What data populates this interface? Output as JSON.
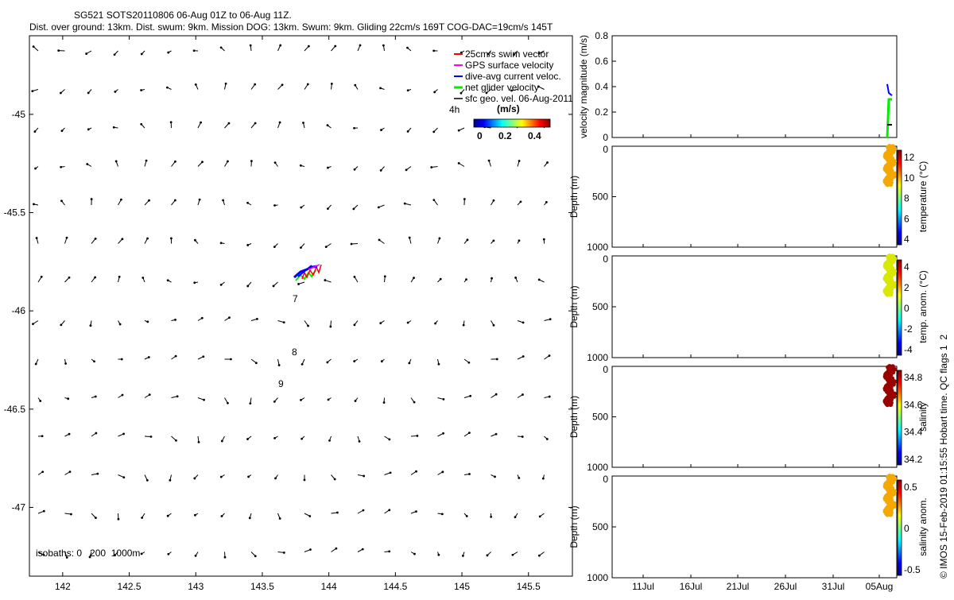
{
  "colors": {
    "swim": "#ff0000",
    "gps": "#ff00ff",
    "dac": "#0000ff",
    "net": "#00ee00",
    "geo": "#000000",
    "axis": "#000000"
  },
  "title": {
    "line1": "SG521 SOTS20110806 06-Aug 01Z to 06-Aug 11Z.",
    "line2": "Dist. over ground: 13km. Dist. swum: 9km. Mission DOG: 13km. Swum: 9km. Gliding 22cm/s 169T COG-DAC=19cm/s 145T"
  },
  "legend": {
    "items": [
      {
        "label": "25cm/s swim vector",
        "color": "#ff0000"
      },
      {
        "label": "GPS surface velocity",
        "color": "#ff00ff"
      },
      {
        "label": "dive-avg current veloc.",
        "color": "#0000ff"
      },
      {
        "label": "net glider velocity",
        "color": "#00ee00"
      },
      {
        "label": "sfc geo. vel. 06-Aug-2011",
        "color": "#000000"
      }
    ],
    "hour_label": "4h",
    "colorbar_unit": "(m/s)",
    "colorbar_ticks": [
      "0",
      "0.2",
      "0.4"
    ]
  },
  "map_annotations": {
    "dive_numbers": [
      "7",
      "8",
      "9"
    ],
    "isobaths": "isobaths: 0   200  1000m"
  },
  "side_text": "© IMOS 15-Feb-2019 01:15:55 Hobart time. QC flags 1  2",
  "chart_data": [
    {
      "type": "scatter",
      "name": "map",
      "x_range": [
        141.75,
        145.83
      ],
      "y_range": [
        -47.35,
        -44.6
      ],
      "x_ticks": [
        142,
        142.5,
        143,
        143.5,
        144,
        144.5,
        145,
        145.5
      ],
      "x_tick_labels": [
        "142",
        "142.5",
        "143",
        "143.5",
        "144",
        "144.5",
        "145",
        "145.5"
      ],
      "y_ticks": [
        -45,
        -45.5,
        -46,
        -46.5,
        -47
      ],
      "y_tick_labels": [
        "-45",
        "-45.5",
        "-46",
        "-46.5",
        "-47"
      ],
      "glider_track": {
        "lon": [
          143.72,
          143.78,
          143.84,
          143.9
        ],
        "lat": [
          -45.79,
          -45.77,
          -45.75,
          -45.73
        ]
      },
      "dive_positions": [
        {
          "label": "7",
          "lon": 143.72,
          "lat": -45.9
        },
        {
          "label": "8",
          "lon": 143.71,
          "lat": -46.17
        },
        {
          "label": "9",
          "lon": 143.6,
          "lat": -46.34
        }
      ]
    },
    {
      "type": "line",
      "name": "velocity",
      "ylabel": "velocity magnitude (m/s)",
      "ylim": [
        0,
        0.8
      ],
      "y_ticks": [
        0,
        0.2,
        0.4,
        0.6,
        0.8
      ],
      "y_tick_labels": [
        "0",
        "0.2",
        "0.4",
        "0.6",
        "0.8"
      ],
      "x_tick_labels": [
        "11Jul",
        "16Jul",
        "21Jul",
        "26Jul",
        "31Jul",
        "05Aug"
      ],
      "series": [
        {
          "color": "#00ee00",
          "values": [
            0,
            0.3,
            0.3
          ]
        },
        {
          "color": "#0000ff",
          "values": [
            0.42,
            0.35,
            0.33
          ]
        },
        {
          "color": "#000000",
          "values": [
            0.1,
            0.1,
            0.1
          ]
        }
      ]
    },
    {
      "type": "scatter",
      "name": "temperature",
      "ylabel": "Depth (m)",
      "cblabel": "temperature (°C)",
      "y_tick_labels": [
        "0",
        "500",
        "1000"
      ],
      "cb_ticks": [
        "4",
        "6",
        "8",
        "10",
        "12"
      ],
      "point_color": "#f5a800"
    },
    {
      "type": "scatter",
      "name": "temp-anom",
      "ylabel": "Depth (m)",
      "cblabel": "temp. anom. (°C)",
      "y_tick_labels": [
        "0",
        "500",
        "1000"
      ],
      "cb_ticks": [
        "-4",
        "-2",
        "0",
        "2",
        "4"
      ],
      "point_color": "#d8e800"
    },
    {
      "type": "scatter",
      "name": "salinity",
      "ylabel": "Depth (m)",
      "cblabel": "salinity",
      "y_tick_labels": [
        "0",
        "500",
        "1000"
      ],
      "cb_ticks": [
        "34.2",
        "34.4",
        "34.6",
        "34.8"
      ],
      "point_color": "#9a0000"
    },
    {
      "type": "scatter",
      "name": "salinity-anom",
      "ylabel": "Depth (m)",
      "cblabel": "salinity anom.",
      "y_tick_labels": [
        "0",
        "500",
        "1000"
      ],
      "cb_ticks": [
        "-0.5",
        "0",
        "0.5"
      ],
      "point_color": "#f5a800"
    }
  ]
}
